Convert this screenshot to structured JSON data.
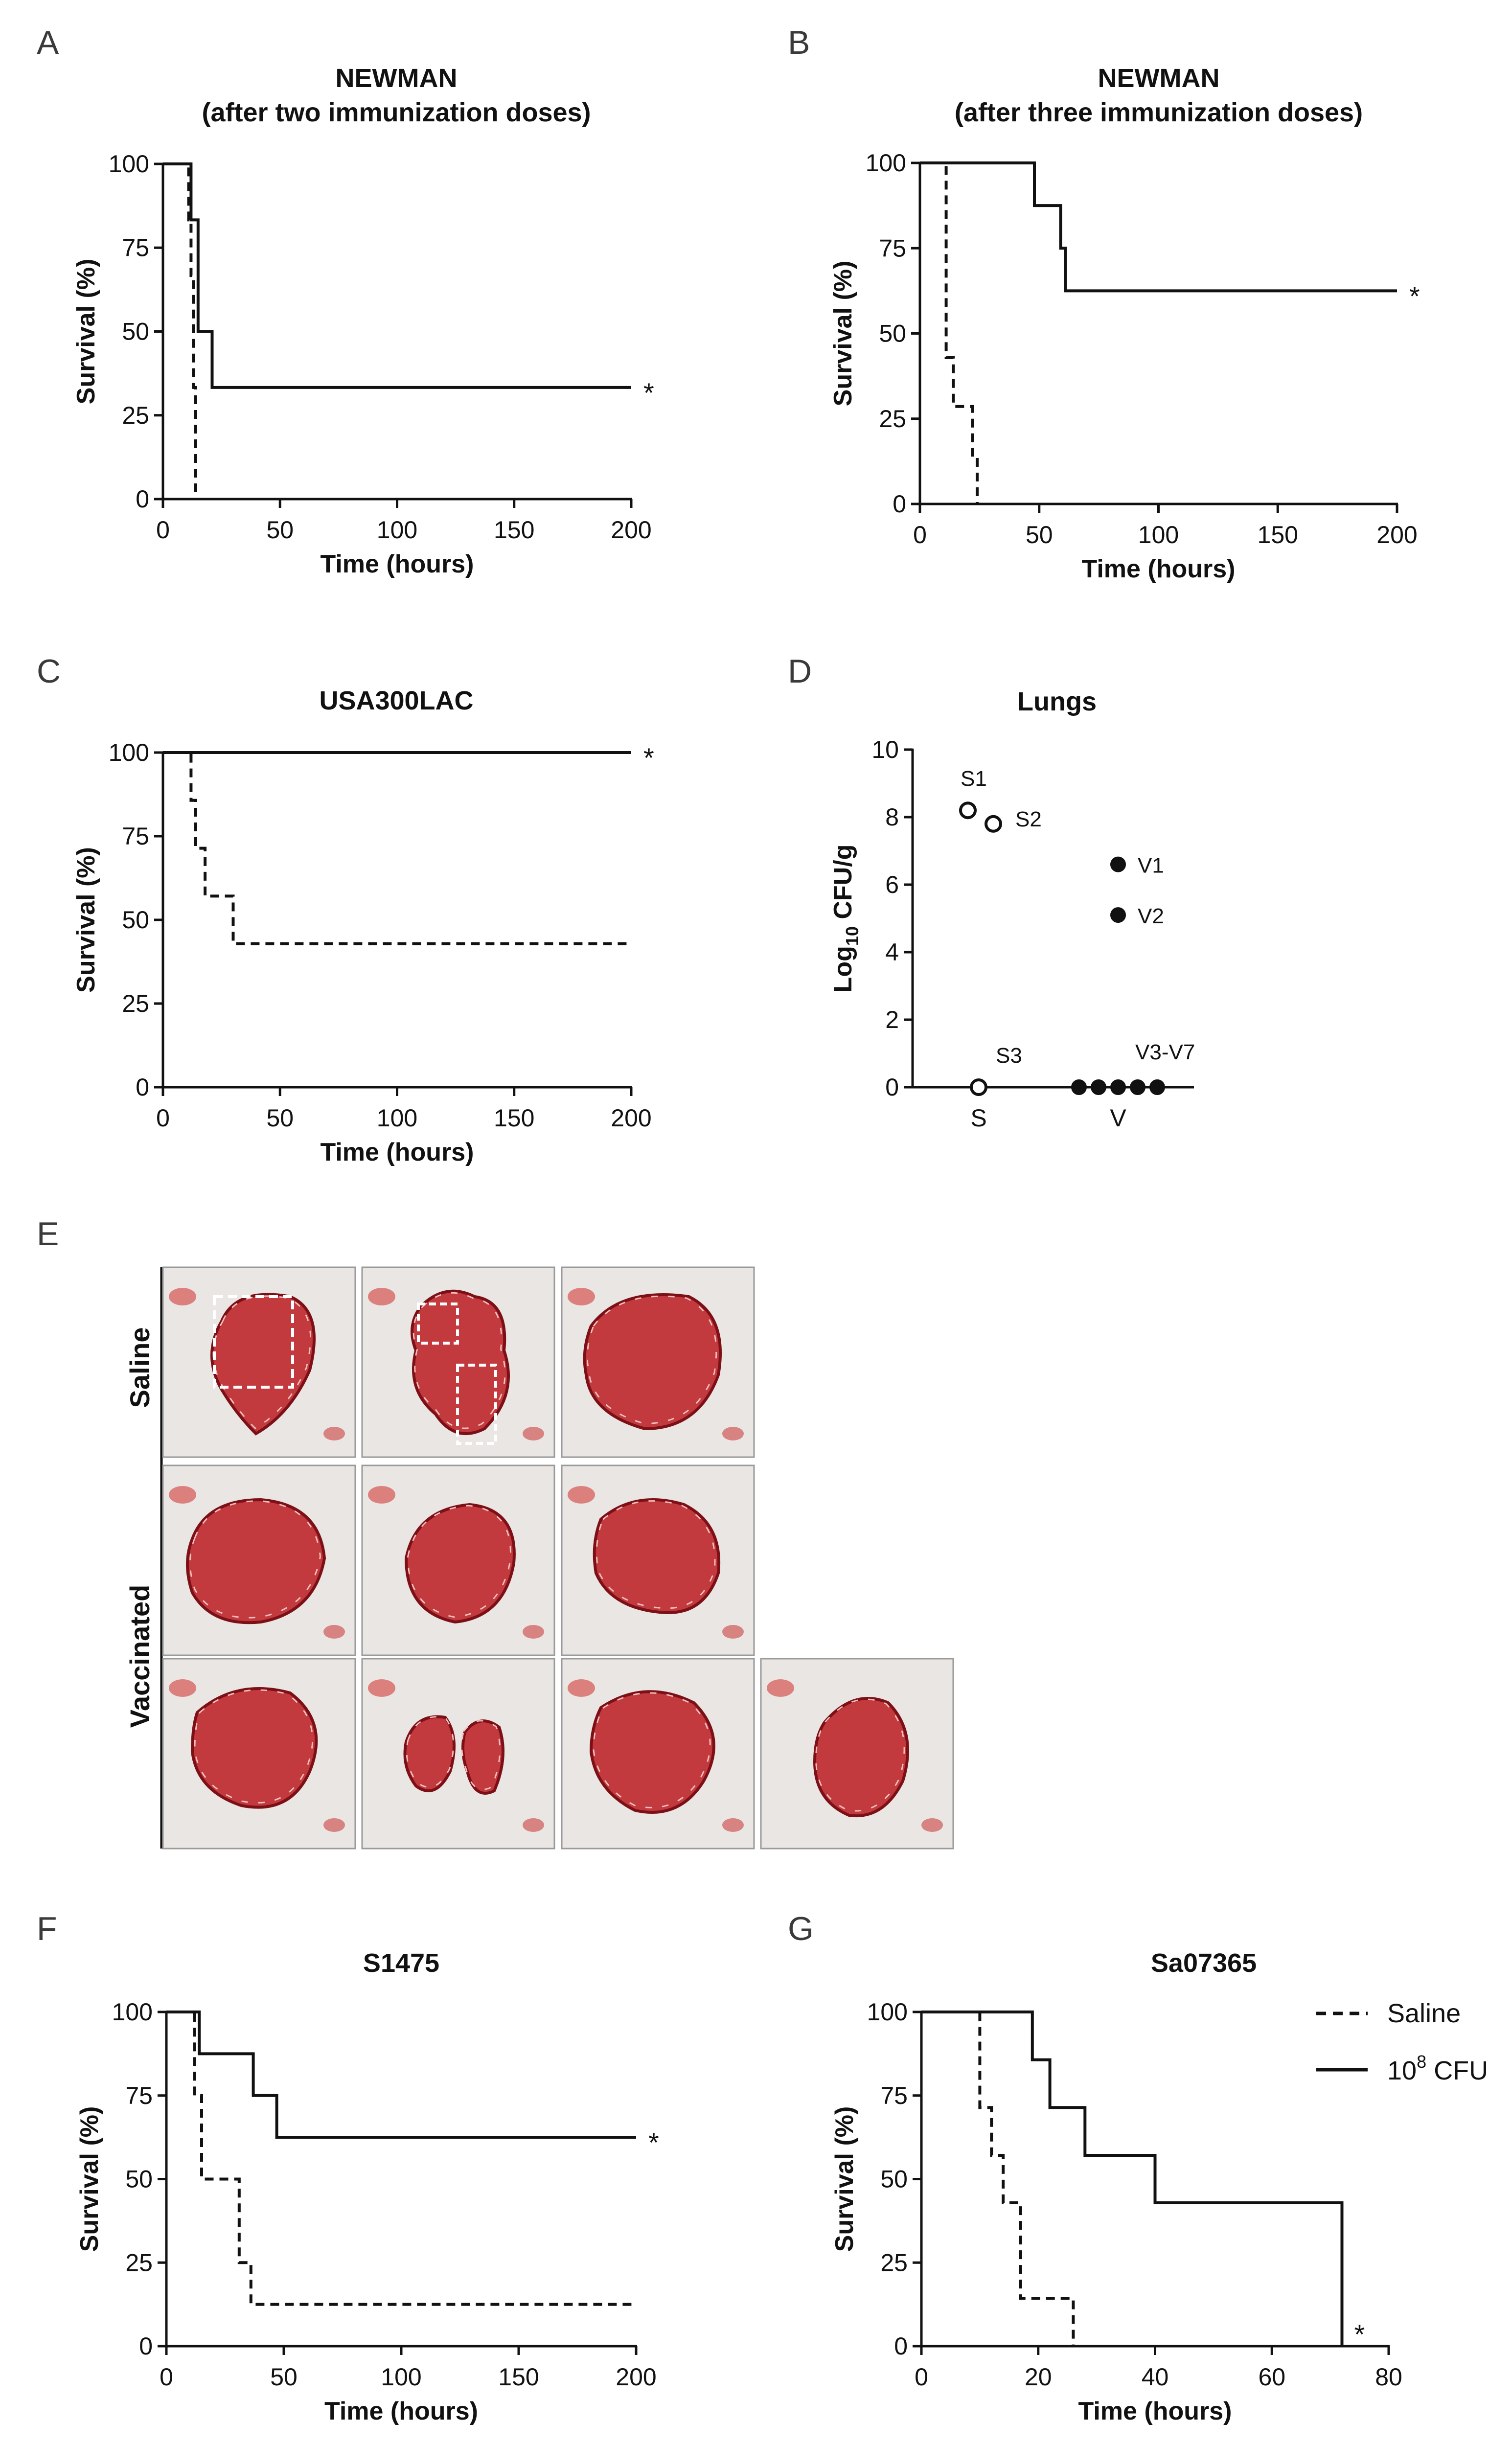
{
  "figure": {
    "legend": {
      "saline": "Saline",
      "dose_base": "10",
      "dose_exp": "8",
      "dose_unit": " CFU"
    },
    "photo_panel": {
      "letter": "E",
      "row_labels": [
        "Saline",
        "Vaccinated"
      ]
    }
  },
  "chart_data": [
    {
      "panel": "A",
      "type": "line",
      "step": true,
      "title": [
        "NEWMAN",
        "(after two immunization doses)"
      ],
      "xlabel": "Time (hours)",
      "ylabel": "Survival (%)",
      "xlim": [
        0,
        200
      ],
      "ylim": [
        0,
        100
      ],
      "xticks": [
        0,
        50,
        100,
        150,
        200
      ],
      "yticks": [
        0,
        25,
        50,
        75,
        100
      ],
      "significance": "*",
      "series": [
        {
          "style": "solid",
          "points": [
            [
              0,
              100
            ],
            [
              12,
              100
            ],
            [
              12,
              83.3
            ],
            [
              15,
              83.3
            ],
            [
              15,
              50
            ],
            [
              21,
              50
            ],
            [
              21,
              33.3
            ],
            [
              200,
              33.3
            ]
          ]
        },
        {
          "style": "dashed",
          "points": [
            [
              0,
              100
            ],
            [
              11,
              100
            ],
            [
              11,
              83.3
            ],
            [
              12,
              83.3
            ],
            [
              12,
              66.7
            ],
            [
              13,
              66.7
            ],
            [
              13,
              33.3
            ],
            [
              14,
              33.3
            ],
            [
              14,
              0
            ]
          ]
        }
      ]
    },
    {
      "panel": "B",
      "type": "line",
      "step": true,
      "title": [
        "NEWMAN",
        "(after three immunization doses)"
      ],
      "xlabel": "Time (hours)",
      "ylabel": "Survival (%)",
      "xlim": [
        0,
        200
      ],
      "ylim": [
        0,
        100
      ],
      "xticks": [
        0,
        50,
        100,
        150,
        200
      ],
      "yticks": [
        0,
        25,
        50,
        75,
        100
      ],
      "significance": "*",
      "series": [
        {
          "style": "solid",
          "points": [
            [
              0,
              100
            ],
            [
              48,
              100
            ],
            [
              48,
              87.5
            ],
            [
              59,
              87.5
            ],
            [
              59,
              75
            ],
            [
              61,
              75
            ],
            [
              61,
              62.5
            ],
            [
              200,
              62.5
            ]
          ]
        },
        {
          "style": "dashed",
          "points": [
            [
              0,
              100
            ],
            [
              11,
              100
            ],
            [
              11,
              42.9
            ],
            [
              14,
              42.9
            ],
            [
              14,
              28.6
            ],
            [
              22,
              28.6
            ],
            [
              22,
              14.3
            ],
            [
              24,
              14.3
            ],
            [
              24,
              0
            ]
          ]
        }
      ]
    },
    {
      "panel": "C",
      "type": "line",
      "step": true,
      "title": [
        "USA300LAC"
      ],
      "xlabel": "Time (hours)",
      "ylabel": "Survival (%)",
      "xlim": [
        0,
        200
      ],
      "ylim": [
        0,
        100
      ],
      "xticks": [
        0,
        50,
        100,
        150,
        200
      ],
      "yticks": [
        0,
        25,
        50,
        75,
        100
      ],
      "significance": "*",
      "series": [
        {
          "style": "solid",
          "points": [
            [
              0,
              100
            ],
            [
              200,
              100
            ]
          ]
        },
        {
          "style": "dashed",
          "points": [
            [
              0,
              100
            ],
            [
              12,
              100
            ],
            [
              12,
              85.7
            ],
            [
              14,
              85.7
            ],
            [
              14,
              71.4
            ],
            [
              18,
              71.4
            ],
            [
              18,
              57.1
            ],
            [
              30,
              57.1
            ],
            [
              30,
              42.9
            ],
            [
              200,
              42.9
            ]
          ]
        }
      ]
    },
    {
      "panel": "D",
      "type": "scatter",
      "title": [
        "Lungs"
      ],
      "ylabel_parts": [
        "Log",
        "10",
        " CFU/g"
      ],
      "ylim": [
        0,
        10
      ],
      "yticks": [
        0,
        2,
        4,
        6,
        8,
        10
      ],
      "categories": [
        "S",
        "V"
      ],
      "points": [
        {
          "group": "S",
          "label": "S1",
          "y": 8.2,
          "filled": false
        },
        {
          "group": "S",
          "label": "S2",
          "y": 7.8,
          "filled": false
        },
        {
          "group": "S",
          "label": "S3",
          "y": 0,
          "filled": false
        },
        {
          "group": "V",
          "label": "V1",
          "y": 6.6,
          "filled": true
        },
        {
          "group": "V",
          "label": "V2",
          "y": 5.1,
          "filled": true
        },
        {
          "group": "V",
          "label": "",
          "y": 0,
          "filled": true
        },
        {
          "group": "V",
          "label": "",
          "y": 0,
          "filled": true
        },
        {
          "group": "V",
          "label": "",
          "y": 0,
          "filled": true
        },
        {
          "group": "V",
          "label": "",
          "y": 0,
          "filled": true
        },
        {
          "group": "V",
          "label": "",
          "y": 0,
          "filled": true
        }
      ],
      "annotations": [
        "V3-V7"
      ]
    },
    {
      "panel": "F",
      "type": "line",
      "step": true,
      "title": [
        "S1475"
      ],
      "xlabel": "Time (hours)",
      "ylabel": "Survival (%)",
      "xlim": [
        0,
        200
      ],
      "ylim": [
        0,
        100
      ],
      "xticks": [
        0,
        50,
        100,
        150,
        200
      ],
      "yticks": [
        0,
        25,
        50,
        75,
        100
      ],
      "significance": "*",
      "series": [
        {
          "style": "solid",
          "points": [
            [
              0,
              100
            ],
            [
              14,
              100
            ],
            [
              14,
              87.5
            ],
            [
              37,
              87.5
            ],
            [
              37,
              75
            ],
            [
              47,
              75
            ],
            [
              47,
              62.5
            ],
            [
              200,
              62.5
            ]
          ]
        },
        {
          "style": "dashed",
          "points": [
            [
              0,
              100
            ],
            [
              12,
              100
            ],
            [
              12,
              75
            ],
            [
              15,
              75
            ],
            [
              15,
              50
            ],
            [
              31,
              50
            ],
            [
              31,
              25
            ],
            [
              36,
              25
            ],
            [
              36,
              12.5
            ],
            [
              200,
              12.5
            ]
          ]
        }
      ]
    },
    {
      "panel": "G",
      "type": "line",
      "step": true,
      "title": [
        "Sa07365"
      ],
      "xlabel": "Time (hours)",
      "ylabel": "Survival (%)",
      "xlim": [
        0,
        80
      ],
      "ylim": [
        0,
        100
      ],
      "xticks": [
        0,
        20,
        40,
        60,
        80
      ],
      "yticks": [
        0,
        25,
        50,
        75,
        100
      ],
      "significance": "*",
      "series": [
        {
          "style": "solid",
          "points": [
            [
              0,
              100
            ],
            [
              19,
              100
            ],
            [
              19,
              85.7
            ],
            [
              22,
              85.7
            ],
            [
              22,
              71.4
            ],
            [
              28,
              71.4
            ],
            [
              28,
              57.1
            ],
            [
              40,
              57.1
            ],
            [
              40,
              42.9
            ],
            [
              72,
              42.9
            ],
            [
              72,
              0
            ]
          ]
        },
        {
          "style": "dashed",
          "points": [
            [
              0,
              100
            ],
            [
              10,
              100
            ],
            [
              10,
              71.4
            ],
            [
              12,
              71.4
            ],
            [
              12,
              57.1
            ],
            [
              14,
              57.1
            ],
            [
              14,
              42.9
            ],
            [
              17,
              42.9
            ],
            [
              17,
              14.3
            ],
            [
              26,
              14.3
            ],
            [
              26,
              0
            ]
          ]
        }
      ]
    }
  ]
}
